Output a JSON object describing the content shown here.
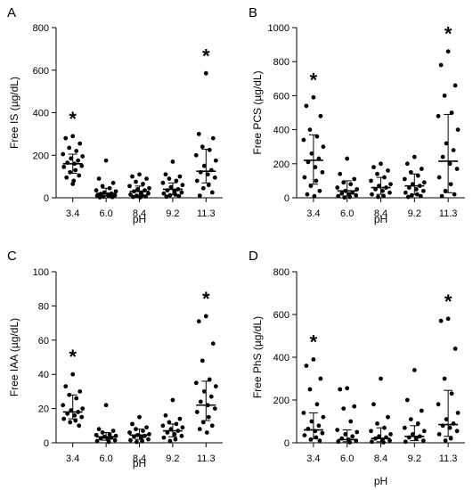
{
  "chart_data": [
    {
      "id": "A",
      "type": "scatter",
      "panel_label": "A",
      "xlabel": "pH",
      "ylabel": "Free IS (µg/dL)",
      "categories": [
        "3.4",
        "6.0",
        "8.4",
        "9.2",
        "11.3"
      ],
      "ylim": [
        0,
        800
      ],
      "yticks": [
        0,
        200,
        400,
        600,
        800
      ],
      "significance": [
        "*",
        "",
        "",
        "",
        "*"
      ],
      "medians": [
        160,
        20,
        30,
        40,
        125
      ],
      "errors": [
        [
          115,
          205
        ],
        [
          8,
          45
        ],
        [
          12,
          55
        ],
        [
          15,
          70
        ],
        [
          70,
          228
        ]
      ],
      "points": [
        [
          290,
          280,
          255,
          235,
          220,
          205,
          195,
          185,
          175,
          165,
          160,
          150,
          145,
          130,
          120,
          105,
          95,
          80,
          65
        ],
        [
          175,
          90,
          70,
          55,
          45,
          35,
          30,
          25,
          20,
          18,
          15,
          12,
          10,
          8,
          5,
          3,
          2
        ],
        [
          110,
          100,
          90,
          75,
          65,
          55,
          45,
          40,
          35,
          30,
          25,
          20,
          15,
          12,
          10,
          6,
          4,
          2
        ],
        [
          170,
          110,
          100,
          90,
          80,
          70,
          60,
          50,
          40,
          35,
          30,
          25,
          20,
          15,
          12,
          8,
          5
        ],
        [
          585,
          300,
          280,
          240,
          225,
          200,
          175,
          150,
          130,
          120,
          110,
          95,
          80,
          60,
          45,
          25,
          10
        ]
      ]
    },
    {
      "id": "B",
      "type": "scatter",
      "panel_label": "B",
      "xlabel": "pH",
      "ylabel": "Free PCS (µg/dL)",
      "categories": [
        "3.4",
        "6.0",
        "8.4",
        "9.2",
        "11.3"
      ],
      "ylim": [
        0,
        1000
      ],
      "yticks": [
        0,
        200,
        400,
        600,
        800,
        1000
      ],
      "significance": [
        "*",
        "",
        "",
        "",
        "*"
      ],
      "medians": [
        220,
        40,
        60,
        70,
        215
      ],
      "errors": [
        [
          80,
          370
        ],
        [
          10,
          100
        ],
        [
          20,
          120
        ],
        [
          20,
          140
        ],
        [
          30,
          490
        ]
      ],
      "points": [
        [
          590,
          540,
          480,
          400,
          360,
          340,
          300,
          260,
          230,
          210,
          180,
          150,
          120,
          100,
          70,
          40,
          20,
          10
        ],
        [
          230,
          140,
          110,
          90,
          80,
          60,
          50,
          40,
          30,
          25,
          20,
          15,
          10,
          5,
          2
        ],
        [
          200,
          180,
          160,
          140,
          120,
          100,
          80,
          70,
          60,
          50,
          40,
          30,
          20,
          10,
          5
        ],
        [
          240,
          200,
          170,
          150,
          130,
          110,
          90,
          80,
          70,
          60,
          50,
          40,
          30,
          20,
          15,
          10,
          5
        ],
        [
          860,
          780,
          660,
          600,
          500,
          480,
          400,
          320,
          280,
          240,
          200,
          170,
          120,
          80,
          40,
          20,
          10
        ]
      ]
    },
    {
      "id": "C",
      "type": "scatter",
      "panel_label": "C",
      "xlabel": "pH",
      "ylabel": "Free IAA (µg/dL)",
      "categories": [
        "3.4",
        "6.0",
        "8.4",
        "9.2",
        "11.3"
      ],
      "ylim": [
        0,
        100
      ],
      "yticks": [
        0,
        20,
        40,
        60,
        80,
        100
      ],
      "significance": [
        "*",
        "",
        "",
        "",
        "*"
      ],
      "medians": [
        18,
        3.5,
        4.5,
        7,
        22
      ],
      "errors": [
        [
          14,
          28
        ],
        [
          1.5,
          6
        ],
        [
          2,
          8
        ],
        [
          3.5,
          11
        ],
        [
          13,
          36
        ]
      ],
      "points": [
        [
          40,
          33,
          30,
          28,
          26,
          22,
          20,
          19,
          18,
          17,
          16,
          15,
          14,
          13,
          12,
          10
        ],
        [
          22,
          8,
          7,
          6,
          5,
          4.5,
          4,
          3.5,
          3,
          2.5,
          2,
          1.5,
          1,
          0.5
        ],
        [
          15,
          11,
          9,
          8,
          7,
          6,
          5,
          4.5,
          4,
          3.5,
          3,
          2,
          1.5,
          1,
          0.5
        ],
        [
          25,
          16,
          14,
          12,
          11,
          10,
          9,
          8,
          7,
          6,
          5,
          4,
          3,
          2,
          1
        ],
        [
          74,
          71,
          58,
          48,
          37,
          35,
          33,
          30,
          27,
          24,
          22,
          20,
          18,
          15,
          12,
          10,
          8,
          6
        ]
      ]
    },
    {
      "id": "D",
      "type": "scatter",
      "panel_label": "D",
      "xlabel": "pH",
      "ylabel": "Free PhS (µg/dL)",
      "categories": [
        "3.4",
        "6.0",
        "8.4",
        "9.2",
        "11.3"
      ],
      "ylim": [
        0,
        800
      ],
      "yticks": [
        0,
        200,
        400,
        600,
        800
      ],
      "significance": [
        "*",
        "",
        "",
        "",
        "*"
      ],
      "medians": [
        60,
        15,
        20,
        30,
        85
      ],
      "errors": [
        [
          20,
          140
        ],
        [
          5,
          60
        ],
        [
          5,
          70
        ],
        [
          10,
          80
        ],
        [
          30,
          245
        ]
      ],
      "points": [
        [
          390,
          360,
          300,
          250,
          180,
          140,
          120,
          100,
          80,
          65,
          55,
          45,
          35,
          25,
          15,
          10
        ],
        [
          255,
          250,
          170,
          160,
          100,
          60,
          50,
          40,
          30,
          20,
          15,
          10,
          5,
          2
        ],
        [
          300,
          180,
          120,
          90,
          70,
          55,
          40,
          30,
          25,
          20,
          15,
          10,
          5,
          2
        ],
        [
          340,
          200,
          150,
          110,
          90,
          70,
          55,
          40,
          30,
          25,
          20,
          10,
          5
        ],
        [
          580,
          570,
          440,
          300,
          230,
          180,
          140,
          110,
          90,
          80,
          70,
          55,
          40,
          20,
          10
        ]
      ]
    }
  ]
}
